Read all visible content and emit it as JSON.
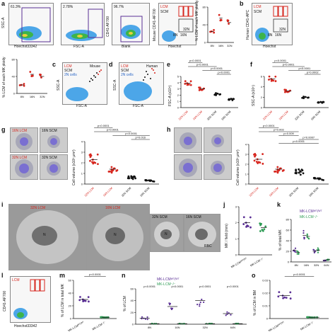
{
  "panels": {
    "a": "a",
    "b": "b",
    "c": "c",
    "d": "d",
    "e": "e",
    "f": "f",
    "g": "g",
    "h": "h",
    "i": "i",
    "j": "j",
    "k": "k",
    "l": "l",
    "m": "m",
    "n": "n",
    "o": "o"
  },
  "flow_a": {
    "gate1": "61.3%",
    "gate2": "2.78%",
    "gate3": "96.7%",
    "x1": "Hoechst33342",
    "x2": "FSC-A",
    "x3": "Blank",
    "x4": "Hoechst",
    "y1": "SSC-A",
    "y2": "SSC-A",
    "y3": "CD41-AF700",
    "y4": "Mouse CD41-AF700",
    "lcm": "LCM",
    "scm": "SCM",
    "n16": "16N",
    "n32": "32N",
    "n8": "8N"
  },
  "panel_a_chart": {
    "ylabel": "% LCM of each MK ploidy",
    "categories": [
      "8N",
      "16N",
      "32N"
    ]
  },
  "flow_b": {
    "x": "Hoechst",
    "y": "Human CD41-APC",
    "lcm": "LCM",
    "scm": "SCM",
    "n16": "16N",
    "n32": "32N",
    "n8": "8N"
  },
  "left_chart": {
    "ylabel": "% LCM of each MK ploidy",
    "categories": [
      "8N",
      "16N",
      "32N"
    ]
  },
  "panel_c": {
    "lcm": "LCM",
    "scm": "SCM",
    "n2": "2N cells",
    "species": "Mouse",
    "x": "FSC-A",
    "y": "SSC-A"
  },
  "panel_d": {
    "lcm": "LCM",
    "scm": "SCM",
    "n2": "2N cells",
    "species": "Human",
    "x": "FSC-A",
    "y": "SSC-A"
  },
  "panel_e": {
    "ylabel": "FSC-A (x10⁵)",
    "p": [
      "p<0.0001",
      "p<0.0001",
      "p<0.0001",
      "p<0.0001"
    ],
    "categories": [
      "32N LCM",
      "16N LCM",
      "32N SCM",
      "16N SCM"
    ]
  },
  "panel_f": {
    "ylabel": "SSC-A (x10⁵)",
    "p": [
      "p<0.0001",
      "p<0.0001",
      "p<0.0001",
      "p=0.0002"
    ],
    "categories": [
      "32N LCM",
      "16N LCM",
      "32N SCM",
      "16N SCM"
    ]
  },
  "panel_g": {
    "tiles": [
      "16N LCM",
      "16N SCM",
      "32N LCM",
      "32N SCM"
    ],
    "ylabel": "Cell volume (x10³ μm³)",
    "p": [
      "p<0.0001",
      "p<0.0001",
      "p<0.0001",
      "p=0.016"
    ],
    "categories": [
      "32N LCM",
      "16N LCM",
      "32N SCM",
      "16N SCM"
    ]
  },
  "panel_h": {
    "ylabel": "Cell volume (x10³ μm³)",
    "p": [
      "p<0.0001",
      "p=0.003",
      "p=0.009",
      "p=0.0007",
      "p<0.0001"
    ],
    "categories": [
      "32N LCM",
      "16N LCM",
      "32N SCM",
      "16N SCM"
    ]
  },
  "panel_i": {
    "t1": "32N LCM",
    "t2": "16N LCM",
    "t3": "32N SCM",
    "t4": "16N SCM",
    "m1": "N",
    "m2": "N",
    "m3": "N",
    "m4": "RBC"
  },
  "panel_j": {
    "ylabel": "MK / field (mm)",
    "categories": [
      "MK-LCMᵂᵀ/ᵂᵀ",
      "MK-LCM⁻/⁻"
    ]
  },
  "panel_k": {
    "legend1": "MK-LCMᵂᵀ/ᵂᵀ",
    "legend2": "MK-LCM⁻/⁻",
    "ylabel": "% of total MK",
    "categories": [
      "8N",
      "16N",
      "32N",
      "64N"
    ]
  },
  "panel_l": {
    "lcm": "LCM",
    "x": "Hoechst33342",
    "y": "CD41-AF700"
  },
  "panel_m": {
    "p": "p<0.0001",
    "ylabel": "% of LCM in total MK",
    "categories": [
      "MK-LCMᵂᵀ/ᵂᵀ",
      "MK-LCM⁻/⁻"
    ]
  },
  "panel_n": {
    "legend1": "MK-LCMᵂᵀ/ᵂᵀ",
    "legend2": "MK-LCM⁻/⁻",
    "p": [
      "p<0.0001",
      "p<0.0001",
      "p<0.0001",
      "p<0.0001"
    ],
    "ylabel": "% of LCM",
    "categories": [
      "8N",
      "16N",
      "32N",
      "64N"
    ]
  },
  "panel_o": {
    "p": "p<0.0001",
    "ylabel": "% of LCM in BM",
    "categories": [
      "MK-LCMᵂᵀ/ᵂᵀ",
      "MK-LCM⁻/⁻"
    ]
  },
  "colors": {
    "red": "#d7261e",
    "blue": "#2a66c6",
    "green": "#2e9c55",
    "purple": "#5a2f95",
    "flow_bg": "#f7f7f7"
  },
  "chart_data": [
    {
      "type": "scatter",
      "panel": "a-right",
      "categories": [
        "8N",
        "16N",
        "32N"
      ],
      "series": [
        {
          "values": [
            25,
            55,
            45
          ]
        }
      ],
      "ylabel": "% LCM of each MK ploidy"
    },
    {
      "type": "scatter",
      "panel": "left-second-row",
      "categories": [
        "8N",
        "16N",
        "32N"
      ],
      "series": [
        {
          "values": [
            20,
            45,
            40
          ]
        }
      ],
      "ylabel": "% LCM of each MK ploidy"
    },
    {
      "type": "scatter",
      "panel": "e",
      "categories": [
        "32N LCM",
        "16N LCM",
        "32N SCM",
        "16N SCM"
      ],
      "series": [
        {
          "values": [
            3.9,
            3.0,
            2.2,
            1.3
          ]
        }
      ],
      "ylabel": "FSC-A (x10⁵)"
    },
    {
      "type": "scatter",
      "panel": "f",
      "categories": [
        "32N LCM",
        "16N LCM",
        "32N SCM",
        "16N SCM"
      ],
      "series": [
        {
          "values": [
            5.5,
            3.2,
            2.0,
            1.0
          ]
        }
      ],
      "ylabel": "SSC-A (x10⁵)"
    },
    {
      "type": "scatter",
      "panel": "g",
      "categories": [
        "32N LCM",
        "16N LCM",
        "32N SCM",
        "16N SCM"
      ],
      "series": [
        {
          "values": [
            2.3,
            1.4,
            0.6,
            0.3
          ]
        }
      ],
      "ylabel": "Cell volume (x10³ μm³)"
    },
    {
      "type": "scatter",
      "panel": "h",
      "categories": [
        "32N LCM",
        "16N LCM",
        "32N SCM",
        "16N SCM"
      ],
      "series": [
        {
          "values": [
            2.5,
            1.5,
            1.2,
            0.5
          ]
        }
      ],
      "ylabel": "Cell volume (x10³ μm³)"
    },
    {
      "type": "scatter",
      "panel": "j",
      "categories": [
        "MK-LCMᵂᵀ/ᵂᵀ",
        "MK-LCM⁻/⁻"
      ],
      "series": [
        {
          "values": [
            2.0,
            1.7
          ]
        }
      ],
      "ylabel": "MK / field (mm)"
    },
    {
      "type": "scatter",
      "panel": "k",
      "categories": [
        "8N",
        "16N",
        "32N",
        "64N"
      ],
      "series": [
        {
          "name": "MK-LCMᵂᵀ/ᵂᵀ",
          "values": [
            22,
            50,
            20,
            3
          ]
        },
        {
          "name": "MK-LCM⁻/⁻",
          "values": [
            18,
            48,
            22,
            4
          ]
        }
      ],
      "ylabel": "% of total MK"
    },
    {
      "type": "scatter",
      "panel": "m",
      "categories": [
        "MK-LCMᵂᵀ/ᵂᵀ",
        "MK-LCM⁻/⁻"
      ],
      "series": [
        {
          "values": [
            30,
            2
          ]
        }
      ],
      "ylabel": "% of LCM in total MK"
    },
    {
      "type": "scatter",
      "panel": "n",
      "categories": [
        "8N",
        "16N",
        "32N",
        "64N"
      ],
      "series": [
        {
          "name": "MK-LCMᵂᵀ/ᵂᵀ",
          "values": [
            10,
            30,
            40,
            18
          ]
        },
        {
          "name": "MK-LCM⁻/⁻",
          "values": [
            1,
            1,
            1,
            1
          ]
        }
      ],
      "ylabel": "% of LCM"
    },
    {
      "type": "scatter",
      "panel": "o",
      "categories": [
        "MK-LCMᵂᵀ/ᵂᵀ",
        "MK-LCM⁻/⁻"
      ],
      "series": [
        {
          "values": [
            0.018,
            0.001
          ]
        }
      ],
      "ylabel": "% of LCM in BM"
    }
  ]
}
